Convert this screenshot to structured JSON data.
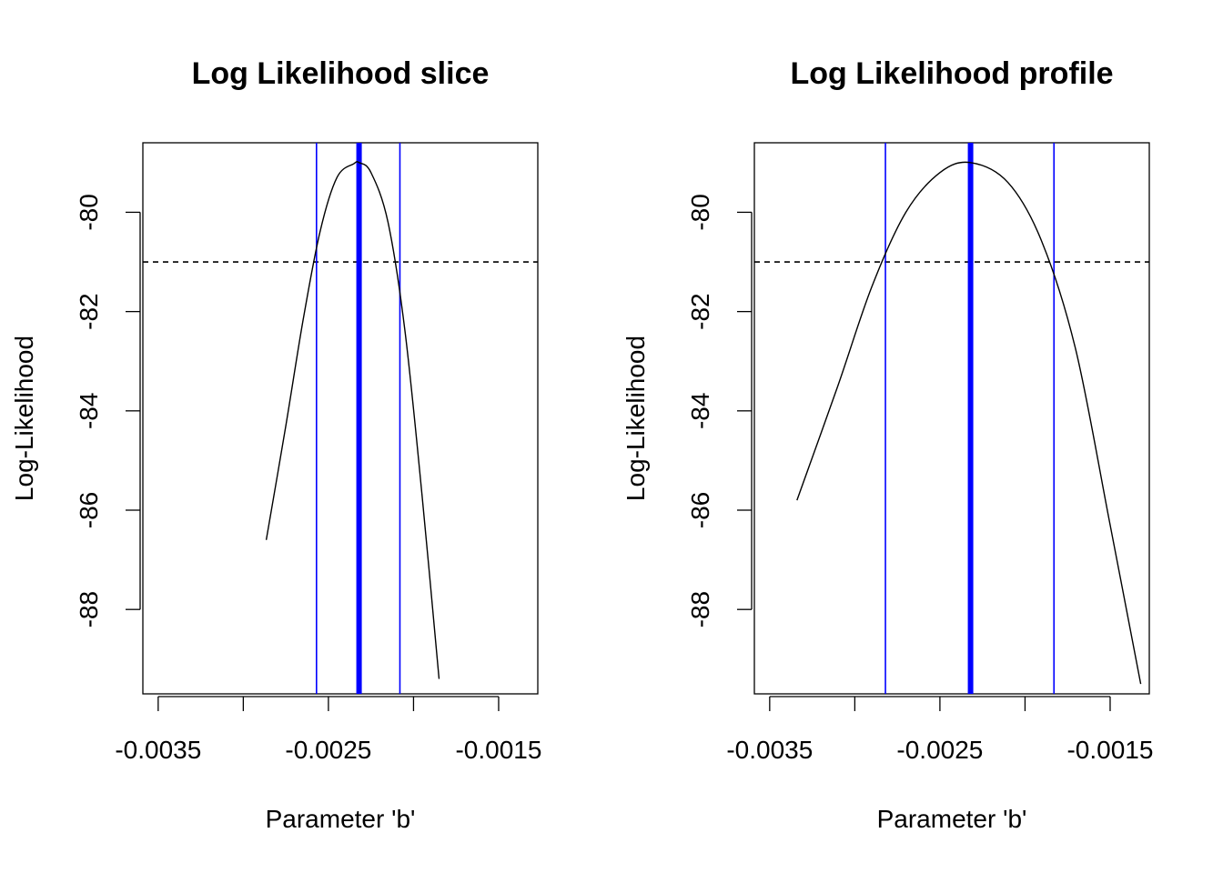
{
  "chart_data": [
    {
      "type": "line",
      "title": "Log Likelihood slice",
      "xlabel": "Parameter 'b'",
      "ylabel": "Log-Likelihood",
      "xlim": [
        -0.00359,
        -0.00127
      ],
      "ylim": [
        -89.7,
        -78.6
      ],
      "x_ticks": [
        -0.0035,
        -0.003,
        -0.0025,
        -0.002,
        -0.0015
      ],
      "x_tick_labels": [
        "-0.0035",
        "",
        "-0.0025",
        "",
        "-0.0015"
      ],
      "y_ticks": [
        -80,
        -82,
        -84,
        -86,
        -88
      ],
      "y_tick_labels": [
        "-80",
        "-82",
        "-84",
        "-86",
        "-88"
      ],
      "curve": {
        "x": [
          -0.002865,
          -0.00275,
          -0.00265,
          -0.00255,
          -0.00245,
          -0.00235,
          -0.00232,
          -0.00225,
          -0.00215,
          -0.00205,
          -0.00195,
          -0.00185
        ],
        "y": [
          -86.6,
          -84.3,
          -82.2,
          -80.4,
          -79.3,
          -79.02,
          -79.0,
          -79.2,
          -80.2,
          -82.4,
          -85.7,
          -89.4
        ]
      },
      "threshold_y": -81.0,
      "estimate_x": -0.00232,
      "ci_x": [
        -0.00257,
        -0.00208
      ],
      "colors": {
        "curve": "#000000",
        "estimate": "#0000ff",
        "ci": "#0000ff",
        "threshold": "#000000"
      }
    },
    {
      "type": "line",
      "title": "Log Likelihood profile",
      "xlabel": "Parameter 'b'",
      "ylabel": "Log-Likelihood",
      "xlim": [
        -0.00359,
        -0.00127
      ],
      "ylim": [
        -89.7,
        -78.6
      ],
      "x_ticks": [
        -0.0035,
        -0.003,
        -0.0025,
        -0.002,
        -0.0015
      ],
      "x_tick_labels": [
        "-0.0035",
        "",
        "-0.0025",
        "",
        "-0.0015"
      ],
      "y_ticks": [
        -80,
        -82,
        -84,
        -86,
        -88
      ],
      "y_tick_labels": [
        "-80",
        "-82",
        "-84",
        "-86",
        "-88"
      ],
      "curve": {
        "x": [
          -0.00334,
          -0.0031,
          -0.0029,
          -0.0027,
          -0.0025,
          -0.00232,
          -0.0021,
          -0.0019,
          -0.0017,
          -0.0015,
          -0.00132
        ],
        "y": [
          -85.8,
          -83.5,
          -81.5,
          -80.0,
          -79.2,
          -79.0,
          -79.4,
          -80.6,
          -82.8,
          -86.3,
          -89.5
        ]
      },
      "threshold_y": -81.0,
      "estimate_x": -0.00232,
      "ci_x": [
        -0.00282,
        -0.00183
      ],
      "colors": {
        "curve": "#000000",
        "estimate": "#0000ff",
        "ci": "#0000ff",
        "threshold": "#000000"
      }
    }
  ]
}
